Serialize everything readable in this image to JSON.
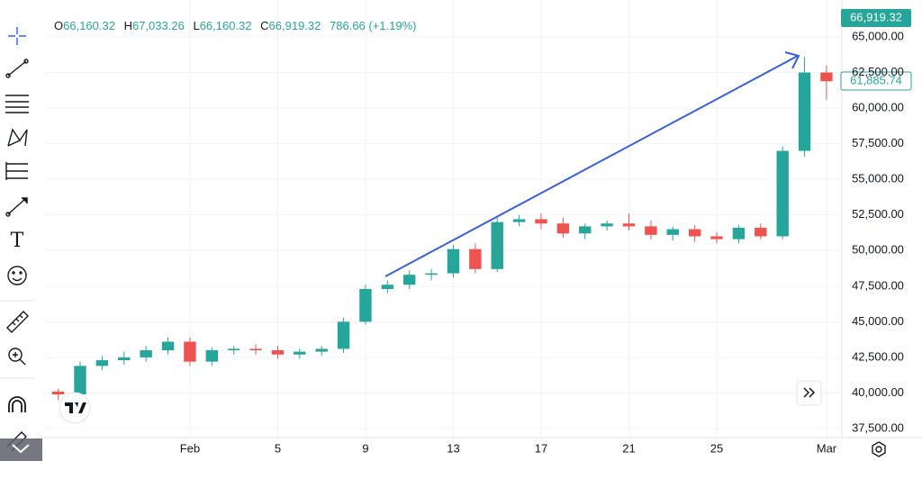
{
  "chart_data": {
    "type": "candlestick",
    "x": [
      -6,
      -5,
      -4,
      -3,
      -2,
      -1,
      0,
      1,
      2,
      3,
      4,
      5,
      6,
      7,
      8,
      9,
      10,
      11,
      12,
      13,
      14,
      15,
      16,
      17,
      18,
      19,
      20,
      21,
      22,
      23,
      24,
      25,
      26,
      27,
      28,
      29
    ],
    "open": [
      40100,
      39900,
      41900,
      42300,
      42500,
      43000,
      43600,
      42200,
      43000,
      43100,
      43000,
      42700,
      42900,
      43100,
      45000,
      47300,
      47600,
      48300,
      48400,
      50100,
      48700,
      52000,
      52200,
      51900,
      51200,
      51700,
      51900,
      51700,
      51100,
      51500,
      51000,
      50800,
      51600,
      51000,
      57000,
      62500
    ],
    "high": [
      40300,
      42200,
      42600,
      42900,
      43300,
      43900,
      43900,
      43200,
      43300,
      43400,
      43300,
      43100,
      43300,
      45300,
      47600,
      47900,
      48600,
      48700,
      50400,
      50500,
      52300,
      52500,
      52600,
      52300,
      51900,
      52100,
      52600,
      52100,
      51700,
      51800,
      51300,
      51800,
      51900,
      57300,
      63600,
      63000
    ],
    "low": [
      39500,
      39700,
      41600,
      42000,
      42200,
      42700,
      41900,
      41900,
      42700,
      42700,
      42400,
      42400,
      42600,
      42800,
      44800,
      47000,
      47300,
      47900,
      48100,
      48400,
      48500,
      51700,
      51500,
      50900,
      50800,
      51400,
      51400,
      50800,
      50700,
      50600,
      50500,
      50500,
      50800,
      50800,
      56600,
      60600
    ],
    "close": [
      39900,
      41900,
      42300,
      42500,
      43000,
      43600,
      42200,
      43000,
      43100,
      43000,
      42700,
      42900,
      43100,
      45000,
      47300,
      47600,
      48300,
      48400,
      50100,
      48700,
      52000,
      52200,
      51900,
      51200,
      51700,
      51900,
      51700,
      51100,
      51500,
      51000,
      50800,
      51600,
      51000,
      57000,
      62500,
      61885.74
    ],
    "up_color": "#26a69a",
    "down_color": "#ef5350",
    "xlim": [
      -6.6,
      29.7
    ],
    "xticks": [
      {
        "value": 0,
        "label": "Feb"
      },
      {
        "value": 4,
        "label": "5"
      },
      {
        "value": 8,
        "label": "9"
      },
      {
        "value": 12,
        "label": "13"
      },
      {
        "value": 16,
        "label": "17"
      },
      {
        "value": 20,
        "label": "21"
      },
      {
        "value": 24,
        "label": "25"
      },
      {
        "value": 29,
        "label": "Mar"
      }
    ],
    "ylim": [
      36900,
      67300
    ],
    "yticks": [
      {
        "value": 37500,
        "label": "37,500.00"
      },
      {
        "value": 40000,
        "label": "40,000.00"
      },
      {
        "value": 42500,
        "label": "42,500.00"
      },
      {
        "value": 45000,
        "label": "45,000.00"
      },
      {
        "value": 47500,
        "label": "47,500.00"
      },
      {
        "value": 50000,
        "label": "50,000.00"
      },
      {
        "value": 52500,
        "label": "52,500.00"
      },
      {
        "value": 55000,
        "label": "55,000.00"
      },
      {
        "value": 57500,
        "label": "57,500.00"
      },
      {
        "value": 60000,
        "label": "60,000.00"
      },
      {
        "value": 62500,
        "label": "62,500.00"
      },
      {
        "value": 65000,
        "label": "65,000.00"
      }
    ],
    "grid": true
  },
  "header": {
    "o_label": "O",
    "o": "66,160.32",
    "h_label": "H",
    "h": "67,033.26",
    "l_label": "L",
    "l": "66,160.32",
    "c_label": "C",
    "c": "66,919.32",
    "change": "786.66 (+1.19%)"
  },
  "price_tags": {
    "last": "66,919.32",
    "current": "61,885.74"
  },
  "toolbar": {
    "text_tool": "T"
  }
}
